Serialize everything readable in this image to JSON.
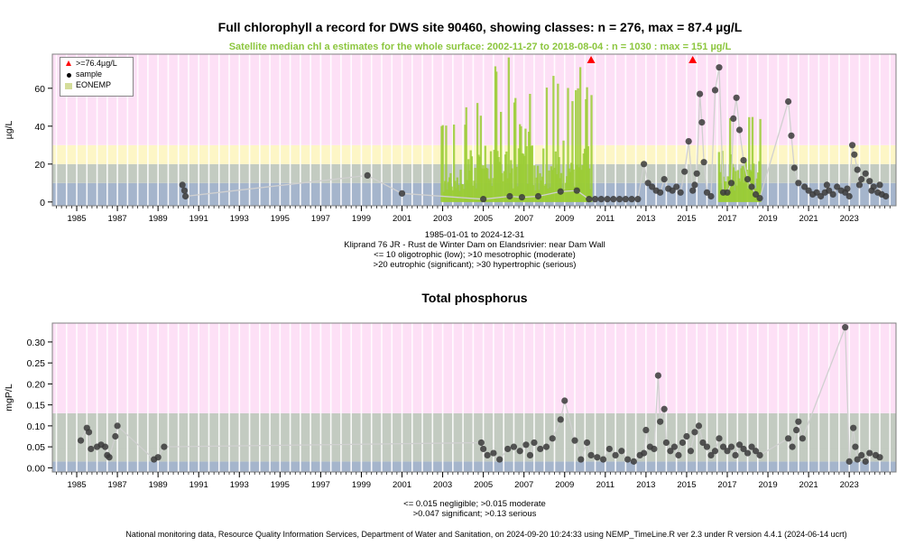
{
  "footer": "National monitoring data, Resource Quality Information Services, Department of Water and Sanitation, on 2024-09-20 10:24:33 using NEMP_TimeLine.R ver 2.3 under R version 4.4.1 (2024-06-14 ucrt)",
  "colors": {
    "band_low": "#a5b5cc",
    "band_moderate": "#c3cbc1",
    "band_significant": "#fdf6c6",
    "band_serious": "#fde0f6",
    "satellite": "#9acd32",
    "points": "#3a3a3a",
    "trend_line": "#d0d0d0",
    "alert": "#ff0000"
  },
  "chart_data": [
    {
      "type": "scatter",
      "title": "Full chlorophyll a record for DWS site 90460, showing classes: n = 276, max = 87.4 µg/L",
      "subtitle": "Satellite median chl a estimates for the whole surface: 2002-11-27 to 2018-08-04 : n = 1030 : max = 151 µg/L",
      "ylabel": "µg/L",
      "xlim": [
        1983.8,
        2025.3
      ],
      "ylim": [
        -2,
        78
      ],
      "yticks": [
        0,
        20,
        40,
        60
      ],
      "xticks": [
        1985,
        1987,
        1989,
        1991,
        1993,
        1995,
        1997,
        1999,
        2001,
        2003,
        2005,
        2007,
        2009,
        2011,
        2013,
        2015,
        2017,
        2019,
        2021,
        2023
      ],
      "class_bands": [
        {
          "from": -2,
          "to": 10,
          "color": "#a5b5cc"
        },
        {
          "from": 10,
          "to": 20,
          "color": "#c3cbc1"
        },
        {
          "from": 20,
          "to": 30,
          "color": "#fdf6c6"
        },
        {
          "from": 30,
          "to": 78,
          "color": "#fde0f6"
        }
      ],
      "legend": {
        "position": "top-left",
        "entries": [
          {
            "label": ">=76.4µg/L",
            "symbol": "triangle",
            "color": "#ff0000"
          },
          {
            "label": "sample",
            "symbol": "dot",
            "color": "#000000"
          },
          {
            "label": "EONEMP",
            "symbol": "square",
            "color": "#d4dd9a"
          }
        ]
      },
      "satellite_range": [
        2002.9,
        2018.6
      ],
      "above_max_markers": [
        2010.3,
        2015.3
      ],
      "caption_lines": [
        "1985-01-01 to 2024-12-31",
        "Kliprand 76 JR - Rust de Winter Dam on Elandsrivier: near Dam Wall",
        "<= 10 oligotrophic (low); >10 mesotrophic (moderate)",
        ">20 eutrophic (significant); >30 hypertrophic (serious)"
      ],
      "series": [
        {
          "name": "sample",
          "points": [
            [
              1990.2,
              9
            ],
            [
              1990.3,
              6
            ],
            [
              1990.35,
              3
            ],
            [
              1999.3,
              14
            ],
            [
              2001.0,
              4.5
            ],
            [
              2005.0,
              1.5
            ],
            [
              2006.3,
              3
            ],
            [
              2006.9,
              2.5
            ],
            [
              2007.7,
              3
            ],
            [
              2008.8,
              5.5
            ],
            [
              2009.6,
              6
            ],
            [
              2010.2,
              1.5
            ],
            [
              2010.5,
              1.5
            ],
            [
              2010.8,
              1.5
            ],
            [
              2011.1,
              1.5
            ],
            [
              2011.4,
              1.5
            ],
            [
              2011.7,
              1.5
            ],
            [
              2012.0,
              1.5
            ],
            [
              2012.3,
              1.5
            ],
            [
              2012.6,
              1.5
            ],
            [
              2012.9,
              20
            ],
            [
              2013.1,
              10
            ],
            [
              2013.3,
              8
            ],
            [
              2013.5,
              6
            ],
            [
              2013.7,
              5
            ],
            [
              2013.9,
              12
            ],
            [
              2014.1,
              7
            ],
            [
              2014.3,
              6
            ],
            [
              2014.5,
              8
            ],
            [
              2014.7,
              5
            ],
            [
              2014.9,
              16
            ],
            [
              2015.1,
              32
            ],
            [
              2015.3,
              6
            ],
            [
              2015.4,
              9
            ],
            [
              2015.5,
              15
            ],
            [
              2015.65,
              57
            ],
            [
              2015.75,
              42
            ],
            [
              2015.85,
              21
            ],
            [
              2016.0,
              5
            ],
            [
              2016.2,
              3
            ],
            [
              2016.4,
              59
            ],
            [
              2016.6,
              71
            ],
            [
              2016.8,
              5
            ],
            [
              2017.0,
              5
            ],
            [
              2017.2,
              10
            ],
            [
              2017.3,
              44
            ],
            [
              2017.45,
              55
            ],
            [
              2017.6,
              38
            ],
            [
              2017.8,
              22
            ],
            [
              2018.0,
              12
            ],
            [
              2018.2,
              8
            ],
            [
              2018.4,
              4
            ],
            [
              2018.6,
              2
            ],
            [
              2020.0,
              53
            ],
            [
              2020.15,
              35
            ],
            [
              2020.3,
              18
            ],
            [
              2020.5,
              10
            ],
            [
              2020.8,
              8
            ],
            [
              2021.0,
              6
            ],
            [
              2021.2,
              4
            ],
            [
              2021.4,
              5
            ],
            [
              2021.6,
              3
            ],
            [
              2021.8,
              5
            ],
            [
              2022.0,
              6
            ],
            [
              2022.2,
              4
            ],
            [
              2022.4,
              8
            ],
            [
              2022.6,
              6
            ],
            [
              2022.8,
              5
            ],
            [
              2023.0,
              3
            ],
            [
              2023.15,
              30
            ],
            [
              2023.25,
              25
            ],
            [
              2023.4,
              17
            ],
            [
              2023.6,
              12
            ],
            [
              2023.8,
              15
            ],
            [
              2024.0,
              11
            ],
            [
              2024.2,
              8
            ],
            [
              2024.4,
              5
            ],
            [
              2024.6,
              4
            ],
            [
              2024.8,
              3
            ],
            [
              2021.9,
              9
            ],
            [
              2022.9,
              7
            ],
            [
              2023.5,
              9
            ],
            [
              2024.1,
              6
            ],
            [
              2024.5,
              9
            ]
          ]
        }
      ]
    },
    {
      "type": "scatter",
      "title": "Total phosphorus",
      "ylabel": "mgP/L",
      "xlim": [
        1983.8,
        2025.3
      ],
      "ylim": [
        -0.01,
        0.345
      ],
      "yticks": [
        0,
        0.05,
        0.1,
        0.15,
        0.2,
        0.25,
        0.3
      ],
      "ytick_labels": [
        "0.00",
        "0.05",
        "0.10",
        "0.15",
        "0.20",
        "0.25",
        "0.30"
      ],
      "xticks": [
        1985,
        1987,
        1989,
        1991,
        1993,
        1995,
        1997,
        1999,
        2001,
        2003,
        2005,
        2007,
        2009,
        2011,
        2013,
        2015,
        2017,
        2019,
        2021,
        2023
      ],
      "class_bands": [
        {
          "from": -0.01,
          "to": 0.015,
          "color": "#a5b5cc"
        },
        {
          "from": 0.015,
          "to": 0.047,
          "color": "#c3cbc1"
        },
        {
          "from": 0.047,
          "to": 0.13,
          "color": "#c3cbc1"
        },
        {
          "from": 0.13,
          "to": 0.345,
          "color": "#fde0f6"
        }
      ],
      "caption_lines": [
        "<= 0.015 negligible; >0.015 moderate",
        ">0.047 significant; >0.13 serious"
      ],
      "series": [
        {
          "name": "sample",
          "points": [
            [
              1985.2,
              0.065
            ],
            [
              1985.5,
              0.095
            ],
            [
              1985.6,
              0.085
            ],
            [
              1985.7,
              0.045
            ],
            [
              1986.0,
              0.05
            ],
            [
              1986.2,
              0.055
            ],
            [
              1986.4,
              0.05
            ],
            [
              1986.5,
              0.03
            ],
            [
              1986.6,
              0.025
            ],
            [
              1987.0,
              0.1
            ],
            [
              1986.9,
              0.075
            ],
            [
              1988.8,
              0.02
            ],
            [
              1989.0,
              0.025
            ],
            [
              1989.3,
              0.05
            ],
            [
              2004.9,
              0.06
            ],
            [
              2005.0,
              0.045
            ],
            [
              2005.2,
              0.03
            ],
            [
              2005.5,
              0.035
            ],
            [
              2005.8,
              0.02
            ],
            [
              2006.2,
              0.045
            ],
            [
              2006.5,
              0.05
            ],
            [
              2006.8,
              0.04
            ],
            [
              2007.1,
              0.055
            ],
            [
              2007.3,
              0.03
            ],
            [
              2007.5,
              0.06
            ],
            [
              2007.8,
              0.045
            ],
            [
              2008.1,
              0.05
            ],
            [
              2008.4,
              0.07
            ],
            [
              2008.8,
              0.115
            ],
            [
              2009.0,
              0.16
            ],
            [
              2009.5,
              0.065
            ],
            [
              2009.8,
              0.02
            ],
            [
              2010.1,
              0.06
            ],
            [
              2010.3,
              0.03
            ],
            [
              2010.6,
              0.025
            ],
            [
              2010.9,
              0.02
            ],
            [
              2011.2,
              0.045
            ],
            [
              2011.5,
              0.03
            ],
            [
              2011.8,
              0.04
            ],
            [
              2012.1,
              0.02
            ],
            [
              2012.4,
              0.015
            ],
            [
              2012.7,
              0.03
            ],
            [
              2012.9,
              0.035
            ],
            [
              2013.0,
              0.09
            ],
            [
              2013.2,
              0.05
            ],
            [
              2013.4,
              0.045
            ],
            [
              2013.6,
              0.22
            ],
            [
              2013.7,
              0.11
            ],
            [
              2013.9,
              0.14
            ],
            [
              2014.0,
              0.06
            ],
            [
              2014.2,
              0.04
            ],
            [
              2014.4,
              0.05
            ],
            [
              2014.6,
              0.03
            ],
            [
              2014.8,
              0.06
            ],
            [
              2015.0,
              0.075
            ],
            [
              2015.2,
              0.04
            ],
            [
              2015.4,
              0.085
            ],
            [
              2015.6,
              0.1
            ],
            [
              2015.8,
              0.06
            ],
            [
              2016.0,
              0.05
            ],
            [
              2016.2,
              0.03
            ],
            [
              2016.4,
              0.04
            ],
            [
              2016.6,
              0.07
            ],
            [
              2016.8,
              0.05
            ],
            [
              2017.0,
              0.04
            ],
            [
              2017.2,
              0.05
            ],
            [
              2017.4,
              0.03
            ],
            [
              2017.6,
              0.055
            ],
            [
              2017.8,
              0.045
            ],
            [
              2018.0,
              0.035
            ],
            [
              2018.2,
              0.05
            ],
            [
              2018.4,
              0.04
            ],
            [
              2018.6,
              0.03
            ],
            [
              2020.0,
              0.07
            ],
            [
              2020.2,
              0.05
            ],
            [
              2020.4,
              0.09
            ],
            [
              2020.5,
              0.11
            ],
            [
              2020.7,
              0.07
            ],
            [
              2022.8,
              0.335
            ],
            [
              2023.0,
              0.015
            ],
            [
              2023.2,
              0.095
            ],
            [
              2023.3,
              0.05
            ],
            [
              2023.4,
              0.02
            ],
            [
              2023.6,
              0.03
            ],
            [
              2023.8,
              0.015
            ],
            [
              2024.0,
              0.035
            ],
            [
              2024.3,
              0.03
            ],
            [
              2024.5,
              0.025
            ]
          ]
        }
      ]
    }
  ]
}
